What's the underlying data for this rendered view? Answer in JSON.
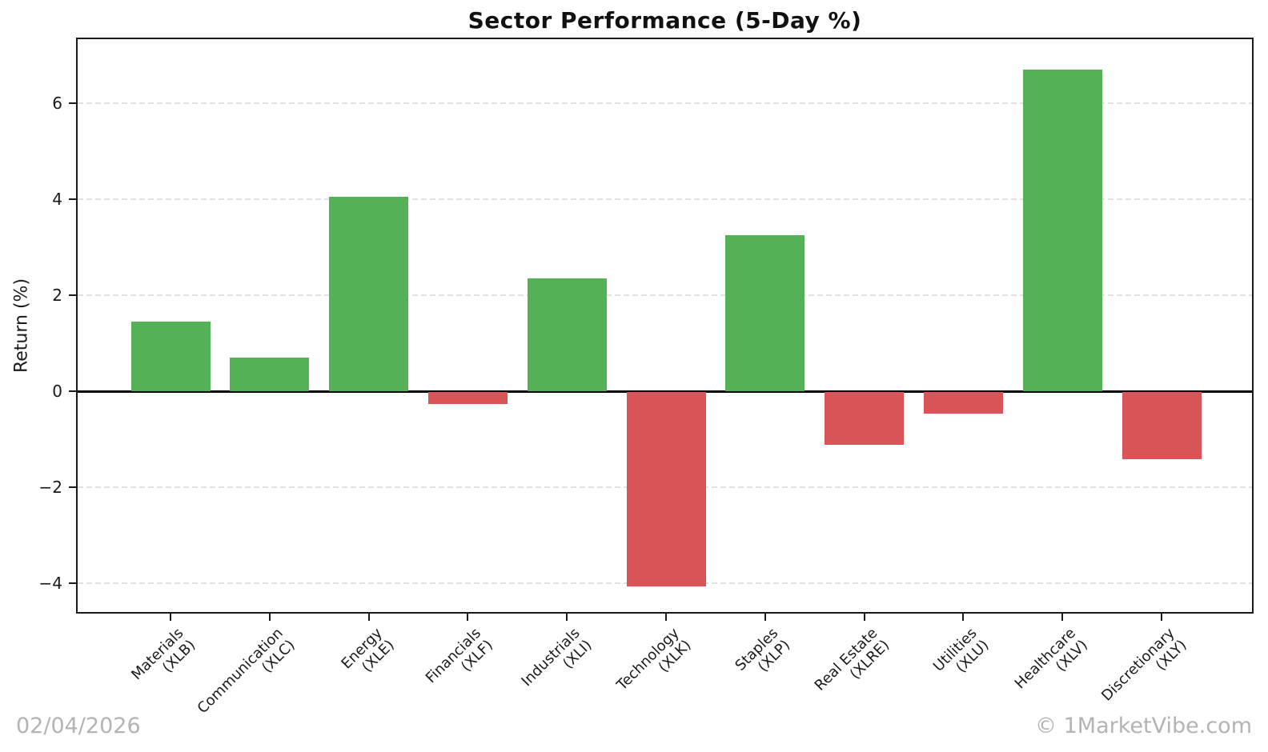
{
  "header": {
    "title": "Sector Performance (5-Day %)"
  },
  "footer": {
    "date": "02/04/2026",
    "watermark": "© 1MarketVibe.com"
  },
  "chart_data": {
    "type": "bar",
    "title": "Sector Performance (5-Day %)",
    "xlabel": "",
    "ylabel": "Return (%)",
    "categories": [
      "Materials (XLB)",
      "Communication (XLC)",
      "Energy (XLE)",
      "Financials (XLF)",
      "Industrials (XLI)",
      "Technology (XLK)",
      "Staples (XLP)",
      "Real Estate (XLRE)",
      "Utilities (XLU)",
      "Healthcare (XLV)",
      "Discretionary (XLY)"
    ],
    "tick_lines": [
      {
        "line1": "Materials",
        "line2": "(XLB)"
      },
      {
        "line1": "Communication",
        "line2": "(XLC)"
      },
      {
        "line1": "Energy",
        "line2": "(XLE)"
      },
      {
        "line1": "Financials",
        "line2": "(XLF)"
      },
      {
        "line1": "Industrials",
        "line2": "(XLI)"
      },
      {
        "line1": "Technology",
        "line2": "(XLK)"
      },
      {
        "line1": "Staples",
        "line2": "(XLP)"
      },
      {
        "line1": "Real Estate",
        "line2": "(XLRE)"
      },
      {
        "line1": "Utilities",
        "line2": "(XLU)"
      },
      {
        "line1": "Healthcare",
        "line2": "(XLV)"
      },
      {
        "line1": "Discretionary",
        "line2": "(XLY)"
      }
    ],
    "values": [
      1.45,
      0.7,
      4.05,
      -0.25,
      2.35,
      -4.05,
      3.25,
      -1.1,
      -0.45,
      6.7,
      -1.4
    ],
    "yticks": [
      6,
      4,
      2,
      0,
      -2,
      -4
    ],
    "ylim": [
      -4.6,
      7.4
    ],
    "grid": {
      "axis": "y",
      "style": "dashed",
      "zero_line": true
    },
    "legend": null,
    "colors": {
      "positive_bar": "#55b156",
      "negative_bar": "#d95456",
      "grid_line": "#e2e2e2",
      "axis_text": "#1a1a1a",
      "muted_text": "#b4b4b4",
      "background": "#ffffff"
    }
  }
}
